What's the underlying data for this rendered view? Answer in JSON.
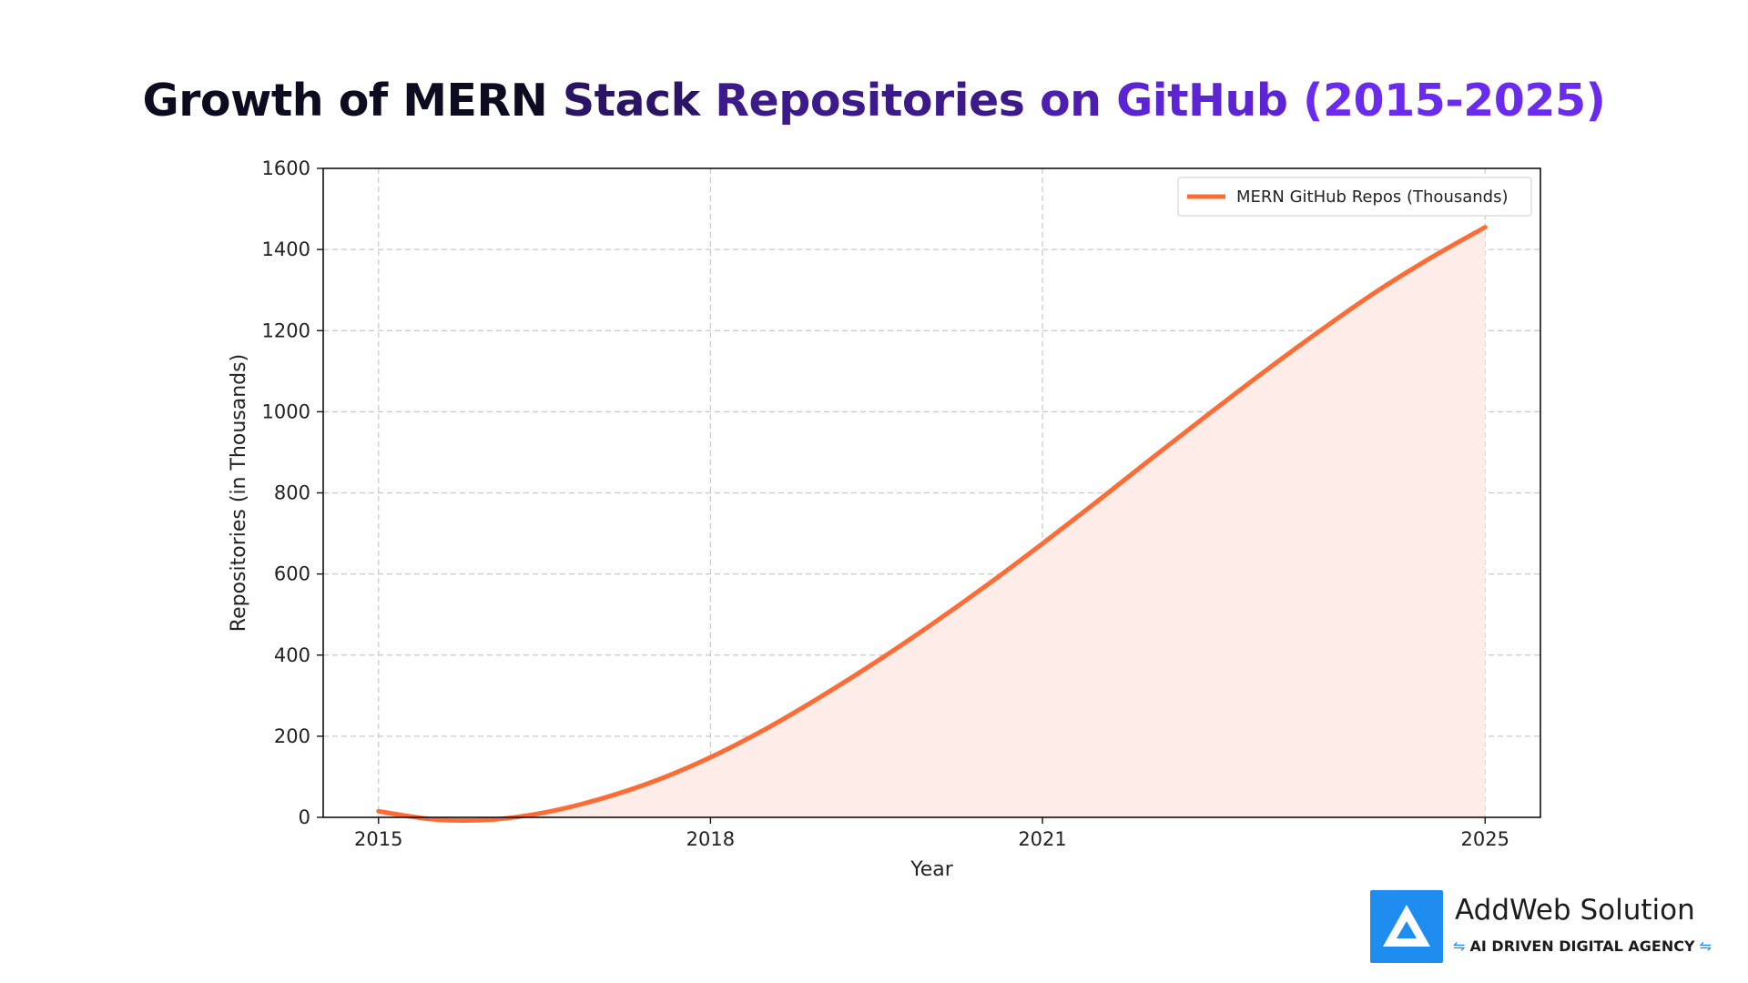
{
  "title_segments": [
    {
      "text": "Growth of MERN ",
      "color": "#0d0b1f"
    },
    {
      "text": "Stack ",
      "color": "#2b1466"
    },
    {
      "text": "Repositories ",
      "color": "#3d1a8a"
    },
    {
      "text": "on ",
      "color": "#4d1fb0"
    },
    {
      "text": "GitHub ",
      "color": "#5d24d3"
    },
    {
      "text": "(2015-2025)",
      "color": "#6b2bee"
    }
  ],
  "chart_data": {
    "type": "area",
    "title": "Growth of MERN Stack Repositories on GitHub (2015-2025)",
    "xlabel": "Year",
    "ylabel": "Repositories (in Thousands)",
    "xlim": [
      2014.5,
      2025.5
    ],
    "ylim": [
      0,
      1600
    ],
    "xticks": [
      2015,
      2018,
      2021,
      2025
    ],
    "yticks": [
      0,
      200,
      400,
      600,
      800,
      1000,
      1200,
      1400,
      1600
    ],
    "grid": true,
    "legend_position": "top-right",
    "series": [
      {
        "name": "MERN GitHub Repos (Thousands)",
        "color": "#ff6b35",
        "fill_color": "#fdece7",
        "x": [
          2015,
          2015.5,
          2016,
          2016.5,
          2017,
          2017.5,
          2018,
          2018.5,
          2019,
          2019.5,
          2020,
          2020.5,
          2021,
          2021.5,
          2022,
          2022.5,
          2023,
          2023.5,
          2024,
          2024.5,
          2025
        ],
        "values": [
          15,
          -5,
          -6,
          12,
          45,
          90,
          148,
          218,
          298,
          384,
          476,
          573,
          675,
          780,
          888,
          994,
          1098,
          1198,
          1293,
          1378,
          1455
        ]
      }
    ]
  },
  "logo": {
    "name": "AddWeb Solution",
    "tagline": "AI DRIVEN DIGITAL AGENCY",
    "mark_color": "#1f8df0"
  }
}
